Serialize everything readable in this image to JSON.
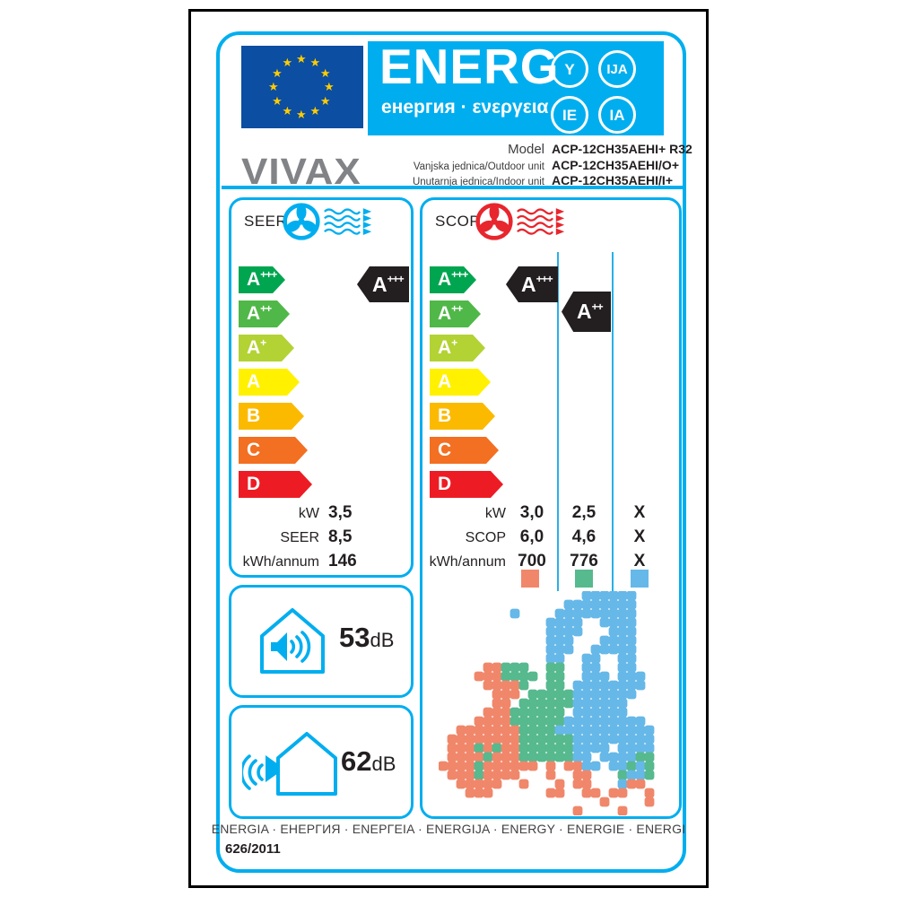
{
  "header": {
    "energ_word": "ENERG",
    "energ_subtitle": "енергия · ενεργεια",
    "badges": [
      "Y",
      "IJA",
      "IE",
      "IA"
    ]
  },
  "brand": "VIVAX",
  "model": {
    "rows": [
      {
        "label": "Model",
        "value": "ACP-12CH35AEHI+ R32"
      },
      {
        "label": "Vanjska jednica/Outdoor unit",
        "value": "ACP-12CH35AEHI/O+"
      },
      {
        "label": "Unutarnja jednica/Indoor unit",
        "value": "ACP-12CH35AEHI/I+"
      }
    ]
  },
  "rating_scale": [
    {
      "grade": "A",
      "sup": "+++",
      "color": "#00a550"
    },
    {
      "grade": "A",
      "sup": "++",
      "color": "#50b848"
    },
    {
      "grade": "A",
      "sup": "+",
      "color": "#b3d234"
    },
    {
      "grade": "A",
      "sup": "",
      "color": "#fff100"
    },
    {
      "grade": "B",
      "sup": "",
      "color": "#fbba00"
    },
    {
      "grade": "C",
      "sup": "",
      "color": "#f36f21"
    },
    {
      "grade": "D",
      "sup": "",
      "color": "#ed1c24"
    }
  ],
  "seer": {
    "title": "SEER",
    "indicator": {
      "grade": "A",
      "sup": "+++"
    },
    "rows": [
      {
        "label": "kW",
        "value": "3,5"
      },
      {
        "label": "SEER",
        "value": "8,5"
      },
      {
        "label": "kWh/annum",
        "value": "146"
      }
    ]
  },
  "scop": {
    "title": "SCOP",
    "indicator_average": {
      "grade": "A",
      "sup": "+++"
    },
    "indicator_colder": {
      "grade": "A",
      "sup": "++"
    },
    "rows": [
      {
        "label": "kW",
        "values": [
          "3,0",
          "2,5",
          "X"
        ]
      },
      {
        "label": "SCOP",
        "values": [
          "6,0",
          "4,6",
          "X"
        ]
      },
      {
        "label": "kWh/annum",
        "values": [
          "700",
          "776",
          "X"
        ]
      }
    ],
    "zones": [
      {
        "name": "warmer",
        "color": "#f0876b"
      },
      {
        "name": "average",
        "color": "#57b98e"
      },
      {
        "name": "colder",
        "color": "#66b8e8"
      }
    ]
  },
  "noise": {
    "indoor": {
      "value": "53",
      "unit": "dB"
    },
    "outdoor": {
      "value": "62",
      "unit": "dB"
    }
  },
  "footer": {
    "energy_words": "ENERGIA · ЕНЕРГИЯ · ENEPΓEIA · ENERGIJA · ENERGY · ENERGIE · ENERGI",
    "regulation": "626/2011"
  },
  "colors": {
    "cyan": "#00aeef",
    "eu_blue": "#0b4ea2",
    "star_yellow": "#ffcc00",
    "tag_black": "#231f20",
    "scop_red": "#e8262d"
  },
  "map": {
    "legend": {
      "o": "#f0876b",
      "g": "#57b98e",
      "b": "#66b8e8"
    },
    "grid": [
      "................bbbbbb....",
      "..............bbbbbbbb....",
      "........b....bbbbbbbbb....",
      "............bbbb..bbbb....",
      "............bbbb...bbb....",
      "............bbb...bbbb....",
      "............bbb..bbbbb....",
      "............bb..bb..bb....",
      ".....ooggg..gg..bb..bb....",
      "....ooogggg.gg..bbb.bbb...",
      ".....oooog..gg.bbbbbbbb...",
      "......ooo.gggggbbbbbbb....",
      "......oo.ggggggbbbbbb.....",
      ".....ooogggggg.bbbbbb.....",
      "....ooooggggggbbbbbbbbb...",
      "..oooooooggggbbbbbbbbbbb..",
      ".ooooooooggggggbbbbbbbbb..",
      ".ooogogooggggggbbbb.bbbb..",
      ".oooogoooggggggbb.bbbbgg..",
      "oooogoooooo.o.oobb.bbgbg..",
      ".ooogoooo...o..oo...gbbg..",
      "..ooooo..o...o.oo...boo...",
      "...ooo......oo..oo.oo..o..",
      "..................o....o..",
      "...............o....o....."
    ]
  }
}
